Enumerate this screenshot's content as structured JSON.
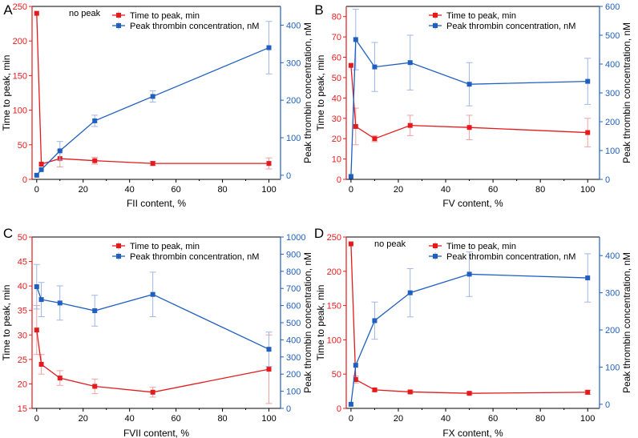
{
  "colors": {
    "red": "#e41a1c",
    "blue": "#1f5fbf",
    "red_err": "#f0a0a0",
    "blue_err": "#9fb6e6",
    "axis": "#000000"
  },
  "chart_data": [
    {
      "id": "A",
      "panel_label": "A",
      "type": "line",
      "xlabel": "FII content, %",
      "ylabel_left": "Time to peak, min",
      "ylabel_right": "Peak thrombin concentration, nM",
      "xlim": [
        -2,
        105
      ],
      "ylim_left": [
        0,
        250
      ],
      "ylim_right": [
        -11,
        450
      ],
      "xticks": [
        0,
        20,
        40,
        60,
        80,
        100
      ],
      "yticks_left": [
        0,
        50,
        100,
        150,
        200,
        250
      ],
      "yticks_right": [
        0,
        100,
        200,
        300,
        400
      ],
      "legend_position": "top-center",
      "annotation": "no peak",
      "series": [
        {
          "name": "Time to peak, min",
          "axis": "left",
          "color": "red",
          "x": [
            0,
            2,
            10,
            25,
            50,
            100
          ],
          "y": [
            240,
            22,
            30,
            27,
            23,
            23
          ],
          "err": [
            0,
            0,
            12,
            5,
            3,
            8
          ]
        },
        {
          "name": "Peak thrombin concentration, nM",
          "axis": "right",
          "color": "blue",
          "x": [
            0,
            2,
            10,
            25,
            50,
            100
          ],
          "y": [
            0,
            15,
            65,
            145,
            210,
            340
          ],
          "err": [
            0,
            0,
            25,
            15,
            15,
            70
          ]
        }
      ]
    },
    {
      "id": "B",
      "panel_label": "B",
      "type": "line",
      "xlabel": "FV content, %",
      "ylabel_left": "Time to peak, min",
      "ylabel_right": "Peak thrombin concentration, nM",
      "xlim": [
        -2,
        105
      ],
      "ylim_left": [
        0,
        85
      ],
      "ylim_right": [
        0,
        600
      ],
      "xticks": [
        0,
        20,
        40,
        60,
        80,
        100
      ],
      "yticks_left": [
        0,
        10,
        20,
        30,
        40,
        50,
        60,
        70,
        80
      ],
      "yticks_right": [
        0,
        100,
        200,
        300,
        400,
        500,
        600
      ],
      "legend_position": "top-center",
      "annotation": "",
      "series": [
        {
          "name": "Time to peak, min",
          "axis": "left",
          "color": "red",
          "x": [
            0,
            2,
            10,
            25,
            50,
            100
          ],
          "y": [
            56,
            26,
            20,
            26.5,
            25.5,
            23
          ],
          "err": [
            0,
            9,
            1.5,
            5,
            6,
            7
          ]
        },
        {
          "name": "Peak thrombin concentration, nM",
          "axis": "right",
          "color": "blue",
          "x": [
            0,
            2,
            10,
            25,
            50,
            100
          ],
          "y": [
            10,
            485,
            390,
            405,
            330,
            340
          ],
          "err": [
            0,
            105,
            85,
            95,
            75,
            80
          ]
        }
      ]
    },
    {
      "id": "C",
      "panel_label": "C",
      "type": "line",
      "xlabel": "FVII content, %",
      "ylabel_left": "Time to peak, min",
      "ylabel_right": "Peak thrombin concentration, nM",
      "xlim": [
        -2,
        105
      ],
      "ylim_left": [
        15,
        50
      ],
      "ylim_right": [
        0,
        1000
      ],
      "xticks": [
        0,
        20,
        40,
        60,
        80,
        100
      ],
      "yticks_left": [
        15,
        20,
        25,
        30,
        35,
        40,
        45,
        50
      ],
      "yticks_right": [
        0,
        100,
        200,
        300,
        400,
        500,
        600,
        700,
        800,
        900,
        1000
      ],
      "legend_position": "top-center",
      "annotation": "",
      "series": [
        {
          "name": "Time to peak, min",
          "axis": "left",
          "color": "red",
          "x": [
            0,
            2,
            10,
            25,
            50,
            100
          ],
          "y": [
            31,
            24,
            21.2,
            19.5,
            18.3,
            23
          ],
          "err": [
            5,
            2,
            1.5,
            1.5,
            1,
            7
          ]
        },
        {
          "name": "Peak thrombin concentration, nM",
          "axis": "right",
          "color": "blue",
          "x": [
            0,
            2,
            10,
            25,
            50,
            100
          ],
          "y": [
            710,
            635,
            615,
            570,
            665,
            345
          ],
          "err": [
            130,
            100,
            100,
            90,
            130,
            100
          ]
        }
      ]
    },
    {
      "id": "D",
      "panel_label": "D",
      "type": "line",
      "xlabel": "FX content, %",
      "ylabel_left": "Time to peak, min",
      "ylabel_right": "Peak thrombin concentration, nM",
      "xlim": [
        -2,
        105
      ],
      "ylim_left": [
        0,
        250
      ],
      "ylim_right": [
        -11,
        450
      ],
      "xticks": [
        0,
        20,
        40,
        60,
        80,
        100
      ],
      "yticks_left": [
        0,
        50,
        100,
        150,
        200,
        250
      ],
      "yticks_right": [
        0,
        100,
        200,
        300,
        400
      ],
      "legend_position": "top-center",
      "annotation": "no peak",
      "series": [
        {
          "name": "Time to peak, min",
          "axis": "left",
          "color": "red",
          "x": [
            0,
            2,
            10,
            25,
            50,
            100
          ],
          "y": [
            240,
            42,
            27,
            24,
            22,
            23.5
          ],
          "err": [
            0,
            5,
            2,
            2,
            2,
            3
          ]
        },
        {
          "name": "Peak thrombin concentration, nM",
          "axis": "right",
          "color": "blue",
          "x": [
            0,
            2,
            10,
            25,
            50,
            100
          ],
          "y": [
            0,
            105,
            225,
            300,
            350,
            340
          ],
          "err": [
            0,
            0,
            50,
            65,
            60,
            65
          ]
        }
      ]
    }
  ]
}
